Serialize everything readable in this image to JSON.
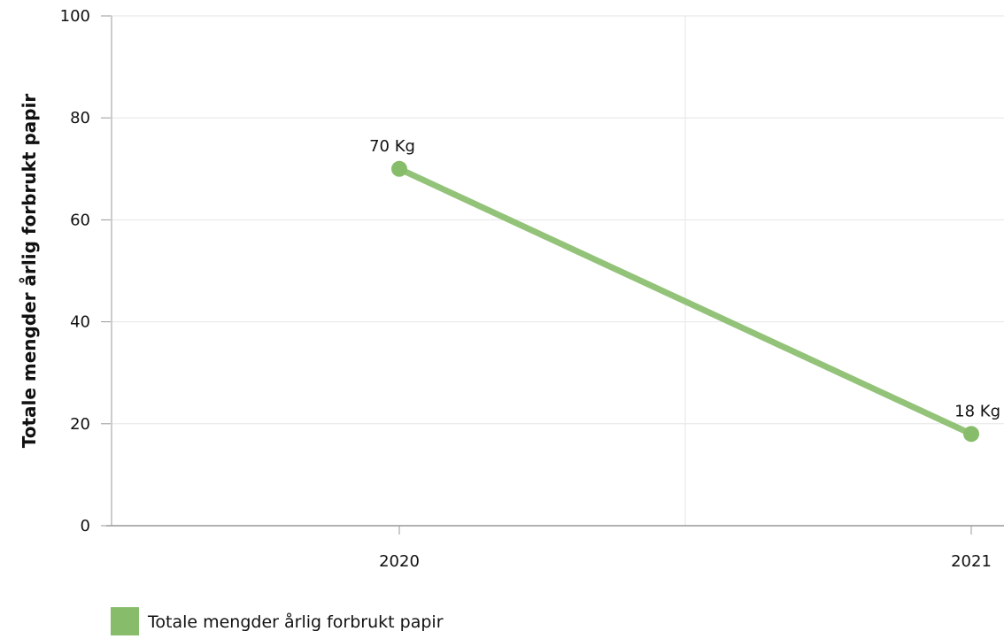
{
  "chart_data": {
    "type": "line",
    "categories": [
      "2020",
      "2021"
    ],
    "series": [
      {
        "name": "Totale mengder årlig forbrukt papir",
        "values": [
          70,
          18
        ],
        "data_labels": [
          "70 Kg",
          "18 Kg"
        ],
        "color": "#87bd6a"
      }
    ],
    "title": "",
    "xlabel": "",
    "ylabel": "Totale mengder årlig forbrukt papir",
    "ylim": [
      0,
      100
    ],
    "yticks": [
      "0",
      "20",
      "40",
      "60",
      "80",
      "100"
    ],
    "grid": true,
    "legend_position": "bottom-left"
  }
}
